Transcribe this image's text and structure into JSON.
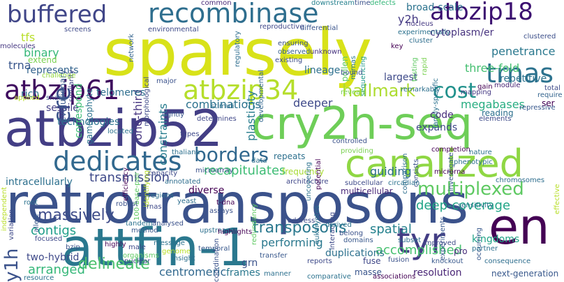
{
  "words": [
    {
      "text": "sparsely",
      "color": "#d8e219"
    },
    {
      "text": "retrotransposons",
      "color": "#3b528b"
    },
    {
      "text": "atbzip52",
      "color": "#433e85"
    },
    {
      "text": "cry2h-seq",
      "color": "#6ece58"
    },
    {
      "text": "attfin-1",
      "color": "#2a788e"
    },
    {
      "text": "canalized",
      "color": "#8fd744"
    },
    {
      "text": "recombinase",
      "color": "#2e6e8e"
    },
    {
      "text": "dedicates",
      "color": "#31688e"
    },
    {
      "text": "en",
      "color": "#440154"
    },
    {
      "text": "atbzip61",
      "color": "#3e0a5e"
    },
    {
      "text": "atbzip34",
      "color": "#b5de2b"
    },
    {
      "text": "atbzip18",
      "color": "#3b0f70"
    },
    {
      "text": "buffered",
      "color": "#404688"
    },
    {
      "text": "tyr",
      "color": "#433d84"
    },
    {
      "text": "trnas",
      "color": "#2c728e"
    },
    {
      "text": "cre",
      "color": "#3b528b"
    },
    {
      "text": "hallmark",
      "color": "#addc30"
    },
    {
      "text": "multiplexed",
      "color": "#5ec962"
    },
    {
      "text": "borders",
      "color": "#31688e"
    },
    {
      "text": "cost",
      "color": "#21918c"
    },
    {
      "text": "transposons",
      "color": "#2a788e"
    },
    {
      "text": "recapitulates",
      "color": "#3dbc74"
    },
    {
      "text": "transmission",
      "color": "#3e4989"
    },
    {
      "text": "deep-coverage",
      "color": "#20a486"
    },
    {
      "text": "accomplished",
      "color": "#46c06f"
    },
    {
      "text": "spatial",
      "color": "#26828e"
    },
    {
      "text": "y1h",
      "color": "#3b528b"
    },
    {
      "text": "megabases",
      "color": "#27ad81"
    },
    {
      "text": "guiding",
      "color": "#2e6d8e"
    },
    {
      "text": "constraints",
      "color": "#287d8e"
    },
    {
      "text": "massively",
      "color": "#3e4c8a"
    },
    {
      "text": "delineate",
      "color": "#4ac16d"
    },
    {
      "text": "centromeric",
      "color": "#31688e"
    },
    {
      "text": "contigs",
      "color": "#1f9e89"
    },
    {
      "text": "combinations",
      "color": "#2c728e"
    },
    {
      "text": "arranged",
      "color": "#35b779"
    },
    {
      "text": "penetrance",
      "color": "#2a788e"
    },
    {
      "text": "three-fold",
      "color": "#44bf70"
    },
    {
      "text": "repetitive",
      "color": "#2c738e"
    },
    {
      "text": "one-third",
      "color": "#463480"
    },
    {
      "text": "tfs",
      "color": "#b8de29"
    },
    {
      "text": "binary",
      "color": "#35b779"
    },
    {
      "text": "intracellularly",
      "color": "#2d708e"
    },
    {
      "text": "deeper",
      "color": "#3e4989"
    },
    {
      "text": "code",
      "color": "#472d7b"
    },
    {
      "text": "y2h",
      "color": "#443983"
    },
    {
      "text": "cytoplasm/er",
      "color": "#46327e"
    },
    {
      "text": "trna",
      "color": "#39568c"
    },
    {
      "text": "sessile",
      "color": "#433e85"
    },
    {
      "text": "two-hybrid",
      "color": "#3e4989"
    },
    {
      "text": "kingdoms",
      "color": "#20a386"
    },
    {
      "text": "grn",
      "color": "#3b528b"
    },
    {
      "text": "frames",
      "color": "#2a788e"
    },
    {
      "text": "resolution",
      "color": "#482475"
    },
    {
      "text": "performing",
      "color": "#2a788e"
    },
    {
      "text": "duplications",
      "color": "#2d718e"
    },
    {
      "text": "next-generation",
      "color": "#38588c"
    },
    {
      "text": "technologies",
      "color": "#2c728e"
    },
    {
      "text": "expands",
      "color": "#3f4889"
    },
    {
      "text": "multicellular",
      "color": "#482677"
    },
    {
      "text": "diverse",
      "color": "#440154"
    },
    {
      "text": "largest",
      "color": "#3e4a89"
    },
    {
      "text": "lineage",
      "color": "#2d708e"
    },
    {
      "text": "plasticity",
      "color": "#287d8e"
    },
    {
      "text": "broad-scale",
      "color": "#2c738e"
    },
    {
      "text": "represents",
      "color": "#33638d"
    },
    {
      "text": "rich",
      "color": "#2d718e"
    },
    {
      "text": "telomeres",
      "color": "#2e6e8e"
    },
    {
      "text": "ser",
      "color": "#440154"
    },
    {
      "text": "frequency",
      "color": "#a8db34"
    },
    {
      "text": "masse",
      "color": "#39558c"
    },
    {
      "text": "fuse",
      "color": "#3f4788"
    },
    {
      "text": "pro",
      "color": "#472c7a"
    },
    {
      "text": "repeats",
      "color": "#2d708e"
    },
    {
      "text": "correspond",
      "color": "#3dbc74"
    },
    {
      "text": "gametophyte",
      "color": "#2c728e"
    },
    {
      "text": "reading",
      "color": "#2d708e"
    },
    {
      "text": "evolutionary",
      "color": "#38588c"
    },
    {
      "text": "extend",
      "color": "#7ad151"
    },
    {
      "text": "similarity",
      "color": "#414487"
    },
    {
      "text": "molecules",
      "color": "#453781"
    },
    {
      "text": "challenge",
      "color": "#95d840"
    },
    {
      "text": "applied",
      "color": "#b8de29"
    },
    {
      "text": "share",
      "color": "#3b528b"
    },
    {
      "text": "environmental",
      "color": "#3e4a89"
    },
    {
      "text": "network",
      "color": "#33638d"
    },
    {
      "text": "experimentally",
      "color": "#2c728e"
    },
    {
      "text": "cluster",
      "color": "#2e6e8e"
    },
    {
      "text": "screens",
      "color": "#3e4a89"
    },
    {
      "text": "common",
      "color": "#482878"
    },
    {
      "text": "downstream",
      "color": "#26818e"
    },
    {
      "text": "time",
      "color": "#3b528b"
    },
    {
      "text": "defects",
      "color": "#35b779"
    },
    {
      "text": "nucleus",
      "color": "#453882"
    },
    {
      "text": "reproductive",
      "color": "#3f4788"
    },
    {
      "text": "differential",
      "color": "#3a548c"
    },
    {
      "text": "key",
      "color": "#440154"
    },
    {
      "text": "testing",
      "color": "#5ec962"
    },
    {
      "text": "clustered",
      "color": "#3c4f8a"
    },
    {
      "text": "rapid",
      "color": "#7ad151"
    },
    {
      "text": "family-specific",
      "color": "#2c728e"
    },
    {
      "text": "pollen",
      "color": "#5ec962"
    },
    {
      "text": "ensuring",
      "color": "#3b528b"
    },
    {
      "text": "observed",
      "color": "#355f8d"
    },
    {
      "text": "unknown",
      "color": "#46327e"
    },
    {
      "text": "sequencing",
      "color": "#1f9a8a"
    },
    {
      "text": "mirnas",
      "color": "#2a788e"
    },
    {
      "text": "developmental",
      "color": "#32658e"
    },
    {
      "text": "morphological",
      "color": "#3e4a89"
    },
    {
      "text": "existing",
      "color": "#3d4d8a"
    },
    {
      "text": "regulatory",
      "color": "#2e6e8e"
    },
    {
      "text": "bound",
      "color": "#3b528b"
    },
    {
      "text": "remarkably",
      "color": "#2d708e"
    },
    {
      "text": "gain",
      "color": "#440154"
    },
    {
      "text": "module",
      "color": "#482475"
    },
    {
      "text": "total",
      "color": "#3e4a89"
    },
    {
      "text": "require",
      "color": "#33638d"
    },
    {
      "text": "mapping",
      "color": "#443983"
    },
    {
      "text": "repressive",
      "color": "#38588c"
    },
    {
      "text": "major",
      "color": "#3b528b"
    },
    {
      "text": "reveals",
      "color": "#7ad151"
    },
    {
      "text": "stimuli",
      "color": "#2e6e8e"
    },
    {
      "text": "tightly",
      "color": "#39568c"
    },
    {
      "text": "determines",
      "color": "#3f4788"
    },
    {
      "text": "located",
      "color": "#2c728e"
    },
    {
      "text": "efficiency",
      "color": "#440154"
    },
    {
      "text": "100-base-pair",
      "color": "#5ec962"
    },
    {
      "text": "types",
      "color": "#3e4989"
    },
    {
      "text": "identifying",
      "color": "#b8de29"
    },
    {
      "text": "data",
      "color": "#2d708e"
    },
    {
      "text": "architecture",
      "color": "#3f4788"
    },
    {
      "text": "uncovering",
      "color": "#2c728e"
    },
    {
      "text": "potential",
      "color": "#440154"
    },
    {
      "text": "controlled",
      "color": "#3b528b"
    },
    {
      "text": "comparison",
      "color": "#2e6e8e"
    },
    {
      "text": "investigate",
      "color": "#38588c"
    },
    {
      "text": "elements",
      "color": "#3e4a89"
    },
    {
      "text": "completion",
      "color": "#440154"
    },
    {
      "text": "nature",
      "color": "#2c728e"
    },
    {
      "text": "providing",
      "color": "#7ad151"
    },
    {
      "text": "consists",
      "color": "#3b528b"
    },
    {
      "text": "phenotypic",
      "color": "#2d708e"
    },
    {
      "text": "chromosomes",
      "color": "#2e6e8e"
    },
    {
      "text": "effective",
      "color": "#b8de29"
    },
    {
      "text": "subcellular",
      "color": "#3e4a89"
    },
    {
      "text": "circadian",
      "color": "#2c728e"
    },
    {
      "text": "microrna",
      "color": "#440154"
    },
    {
      "text": "occurring",
      "color": "#38588c"
    },
    {
      "text": "thaliana",
      "color": "#2d708e"
    },
    {
      "text": "capacity",
      "color": "#3e4a89"
    },
    {
      "text": "microarray",
      "color": "#3b528b"
    },
    {
      "text": "annotated",
      "color": "#2e6e8e"
    },
    {
      "text": "independent",
      "color": "#b8de29"
    },
    {
      "text": "variation",
      "color": "#3e4989"
    },
    {
      "text": "root",
      "color": "#2c728e"
    },
    {
      "text": "allele",
      "color": "#38588c"
    },
    {
      "text": "regions",
      "color": "#2d708e"
    },
    {
      "text": "robust",
      "color": "#3b528b"
    },
    {
      "text": "rnas",
      "color": "#3e4a89"
    },
    {
      "text": "yeast",
      "color": "#2e6e8e"
    },
    {
      "text": "t-dna",
      "color": "#440154"
    },
    {
      "text": "assays",
      "color": "#3b528b"
    },
    {
      "text": "redundancy",
      "color": "#5ec962"
    },
    {
      "text": "eukaryotes",
      "color": "#2c728e"
    },
    {
      "text": "interacting",
      "color": "#3e4a89"
    },
    {
      "text": "experiments",
      "color": "#38588c"
    },
    {
      "text": "sensitivity",
      "color": "#2d708e"
    },
    {
      "text": "focused",
      "color": "#3e4989"
    },
    {
      "text": "tandem",
      "color": "#2c728e"
    },
    {
      "text": "analysed",
      "color": "#3b528b"
    },
    {
      "text": "method",
      "color": "#38588c"
    },
    {
      "text": "upstream",
      "color": "#2d708e"
    },
    {
      "text": "highlights",
      "color": "#440154"
    },
    {
      "text": "address",
      "color": "#3e4a89"
    },
    {
      "text": "derived",
      "color": "#2c728e"
    },
    {
      "text": "belong",
      "color": "#3b528b"
    },
    {
      "text": "domains",
      "color": "#38588c"
    },
    {
      "text": "subset",
      "color": "#2e6e8e"
    },
    {
      "text": "improved",
      "color": "#3e4a89"
    },
    {
      "text": "partner",
      "color": "#2d708e"
    },
    {
      "text": "bzip",
      "color": "#3b528b"
    },
    {
      "text": "highly",
      "color": "#440154"
    },
    {
      "text": "male",
      "color": "#3e4a89"
    },
    {
      "text": "message",
      "color": "#2c728e"
    },
    {
      "text": "temporal",
      "color": "#38588c"
    },
    {
      "text": "genome",
      "color": "#b8de29"
    },
    {
      "text": "insight",
      "color": "#2d708e"
    },
    {
      "text": "nuclear",
      "color": "#3e4989"
    },
    {
      "text": "resource",
      "color": "#2c728e"
    },
    {
      "text": "organisms",
      "color": "#5ec962"
    },
    {
      "text": "coordination",
      "color": "#3b528b"
    },
    {
      "text": "transfer",
      "color": "#38588c"
    },
    {
      "text": "manner",
      "color": "#2d708e"
    },
    {
      "text": "reports",
      "color": "#3e4a89"
    },
    {
      "text": "comparative",
      "color": "#2c728e"
    },
    {
      "text": "associations",
      "color": "#440154"
    },
    {
      "text": "fusion",
      "color": "#3b528b"
    },
    {
      "text": "knockout",
      "color": "#38588c"
    },
    {
      "text": "consequence",
      "color": "#2e6e8e"
    }
  ]
}
